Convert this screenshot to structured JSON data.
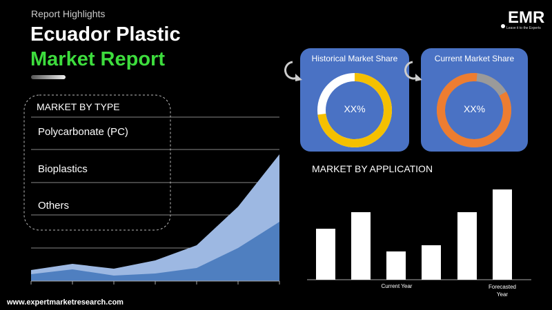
{
  "header": {
    "kicker": "Report Highlights",
    "title_line1": "Ecuador Plastic",
    "title_line2": "Market Report"
  },
  "logo": {
    "name": "EMR",
    "tagline": "Leave it to the Experts"
  },
  "market_by_type": {
    "title": "MARKET BY TYPE",
    "items": [
      "Polycarbonate (PC)",
      "Bioplastics",
      "Others"
    ]
  },
  "historical_share": {
    "title": "Historical Market Share",
    "value": "XX%"
  },
  "current_share": {
    "title": "Current Market Share",
    "value": "XX%"
  },
  "market_by_application": {
    "title": "MARKET BY APPLICATION",
    "labels": [
      "Current Year",
      "Forecasted Year"
    ]
  },
  "footer": {
    "url": "www.expertmarketresearch.com"
  }
}
